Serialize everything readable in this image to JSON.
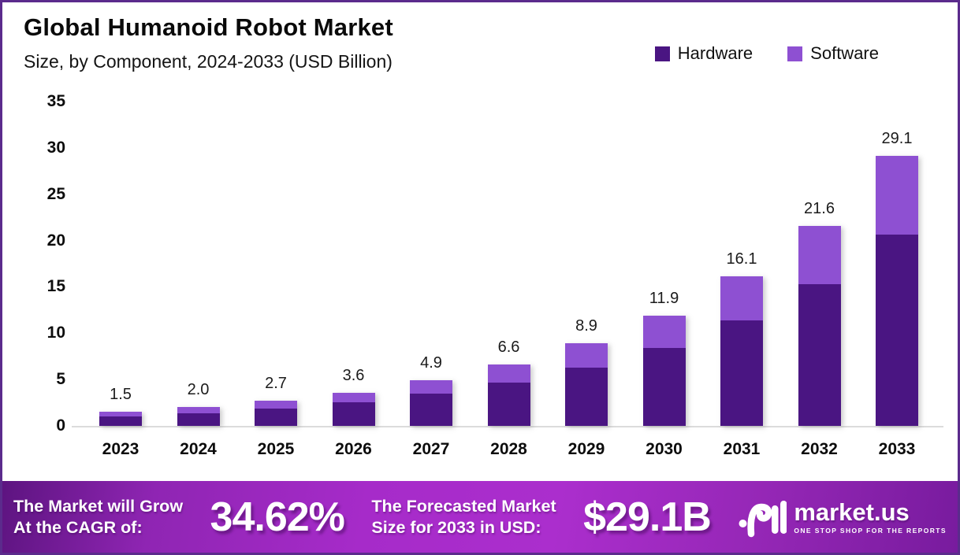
{
  "frame": {
    "border_color": "#5b2b8c",
    "background": "#ffffff"
  },
  "header": {
    "title": "Global Humanoid Robot Market",
    "subtitle": "Size, by Component, 2024-2033 (USD Billion)"
  },
  "legend": [
    {
      "label": "Hardware",
      "color": "#4a1582"
    },
    {
      "label": "Software",
      "color": "#8e50d2"
    }
  ],
  "chart_data": {
    "type": "bar",
    "stacked": true,
    "title": "Global Humanoid Robot Market Size, by Component, 2024-2033 (USD Billion)",
    "xlabel": "",
    "ylabel": "",
    "categories": [
      "2023",
      "2024",
      "2025",
      "2026",
      "2027",
      "2028",
      "2029",
      "2030",
      "2031",
      "2032",
      "2033"
    ],
    "series": [
      {
        "name": "Hardware",
        "color": "#4a1582",
        "values": [
          1.05,
          1.4,
          1.9,
          2.55,
          3.45,
          4.65,
          6.3,
          8.4,
          11.4,
          15.3,
          20.6
        ]
      },
      {
        "name": "Software",
        "color": "#8e50d2",
        "values": [
          0.45,
          0.6,
          0.8,
          1.05,
          1.45,
          1.95,
          2.6,
          3.5,
          4.7,
          6.3,
          8.5
        ]
      }
    ],
    "totals": [
      1.5,
      2.0,
      2.7,
      3.6,
      4.9,
      6.6,
      8.9,
      11.9,
      16.1,
      21.6,
      29.1
    ],
    "total_labels": [
      "1.5",
      "2.0",
      "2.7",
      "3.6",
      "4.9",
      "6.6",
      "8.9",
      "11.9",
      "16.1",
      "21.6",
      "29.1"
    ],
    "ylim": [
      0,
      35
    ],
    "yticks": [
      0,
      5,
      10,
      15,
      20,
      25,
      30,
      35
    ],
    "grid": false,
    "legend_position": "top-right"
  },
  "footer": {
    "cagr_label_line1": "The Market will Grow",
    "cagr_label_line2": "At the CAGR of:",
    "cagr_value": "34.62%",
    "forecast_label_line1": "The Forecasted Market",
    "forecast_label_line2": "Size for 2033 in USD:",
    "forecast_value": "$29.1B",
    "brand": {
      "name": "market.us",
      "tagline": "ONE STOP SHOP FOR THE REPORTS"
    }
  }
}
